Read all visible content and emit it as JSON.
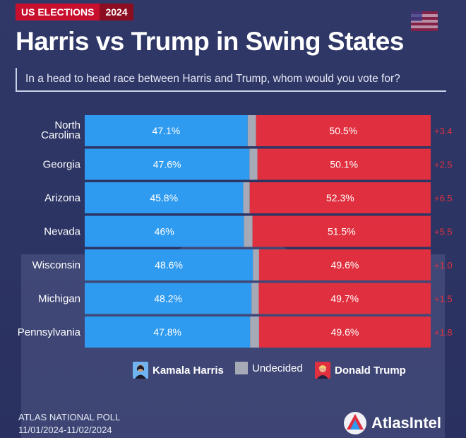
{
  "tag": {
    "label": "US ELECTIONS",
    "year": "2024"
  },
  "title": "Harris vs Trump in Swing States",
  "subtitle": "In a head to head race between Harris and Trump, whom would you vote for?",
  "legend": {
    "harris": "Kamala Harris",
    "undecided": "Undecided",
    "trump": "Donald Trump"
  },
  "footer": {
    "line1": "ATLAS NATIONAL POLL",
    "line2": "11/01/2024-11/02/2024"
  },
  "brand": "AtlasIntel",
  "colors": {
    "harris": "#2f9bf0",
    "trump": "#e0303f",
    "undecided": "#a6a9b6"
  },
  "chart_data": {
    "type": "bar",
    "orientation": "horizontal-stacked",
    "categories": [
      "North Carolina",
      "Georgia",
      "Arizona",
      "Nevada",
      "Wisconsin",
      "Michigan",
      "Pennsylvania"
    ],
    "category_lines": [
      [
        "North",
        "Carolina"
      ],
      [
        "Georgia"
      ],
      [
        "Arizona"
      ],
      [
        "Nevada"
      ],
      [
        "Wisconsin"
      ],
      [
        "Michigan"
      ],
      [
        "Pennsylvania"
      ]
    ],
    "series": [
      {
        "name": "Kamala Harris",
        "values": [
          47.1,
          47.6,
          45.8,
          46,
          48.6,
          48.2,
          47.8
        ],
        "labels": [
          "47.1%",
          "47.6%",
          "45.8%",
          "46%",
          "48.6%",
          "48.2%",
          "47.8%"
        ]
      },
      {
        "name": "Undecided",
        "values": [
          2.4,
          2.3,
          1.9,
          2.5,
          1.8,
          2.1,
          2.6
        ]
      },
      {
        "name": "Donald Trump",
        "values": [
          50.5,
          50.1,
          52.3,
          51.5,
          49.6,
          49.7,
          49.6
        ],
        "labels": [
          "50.5%",
          "50.1%",
          "52.3%",
          "51.5%",
          "49.6%",
          "49.7%",
          "49.6%"
        ]
      }
    ],
    "margins": [
      "+3.4",
      "+2.5",
      "+6.5",
      "+5.5",
      "+1.0",
      "+1.5",
      "+1.8"
    ],
    "xlim": [
      0,
      100
    ]
  }
}
